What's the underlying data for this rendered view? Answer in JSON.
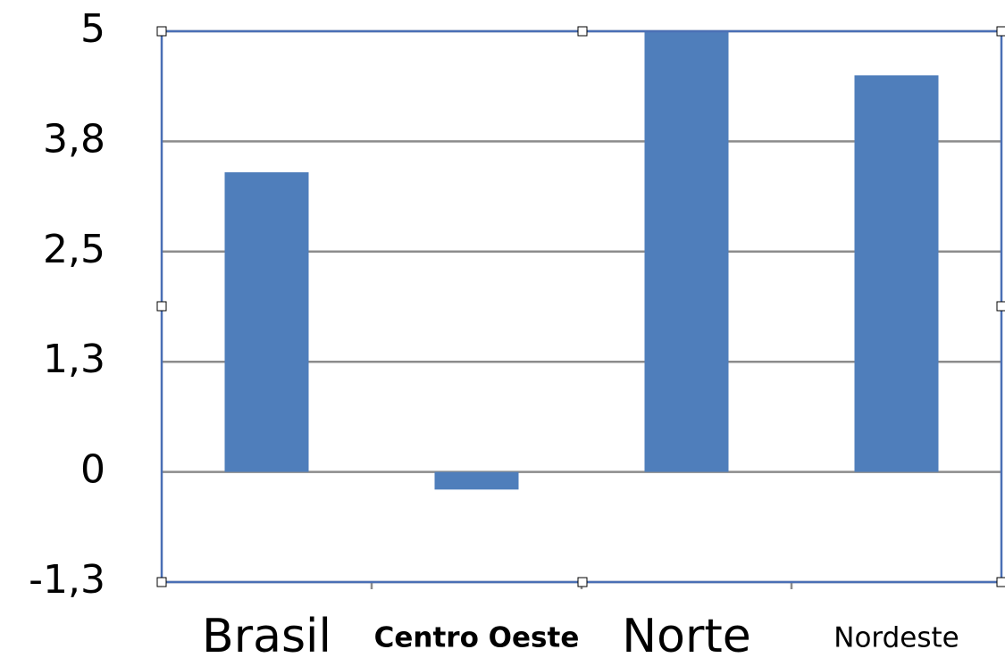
{
  "chart_data": {
    "type": "bar",
    "categories": [
      "Brasil",
      "Centro Oeste",
      "Norte",
      "Nordeste"
    ],
    "values": [
      3.4,
      -0.2,
      5,
      4.5
    ],
    "color": "#4f7ebb",
    "ylim": [
      -1.25,
      5
    ],
    "yticks": [
      {
        "value": -1.25,
        "label": "-1,3"
      },
      0,
      {
        "value": 1.25,
        "label": "1,3"
      },
      {
        "value": 2.5,
        "label": "2,5"
      },
      {
        "value": 3.75,
        "label": "3,8"
      },
      5
    ],
    "grid": true
  }
}
